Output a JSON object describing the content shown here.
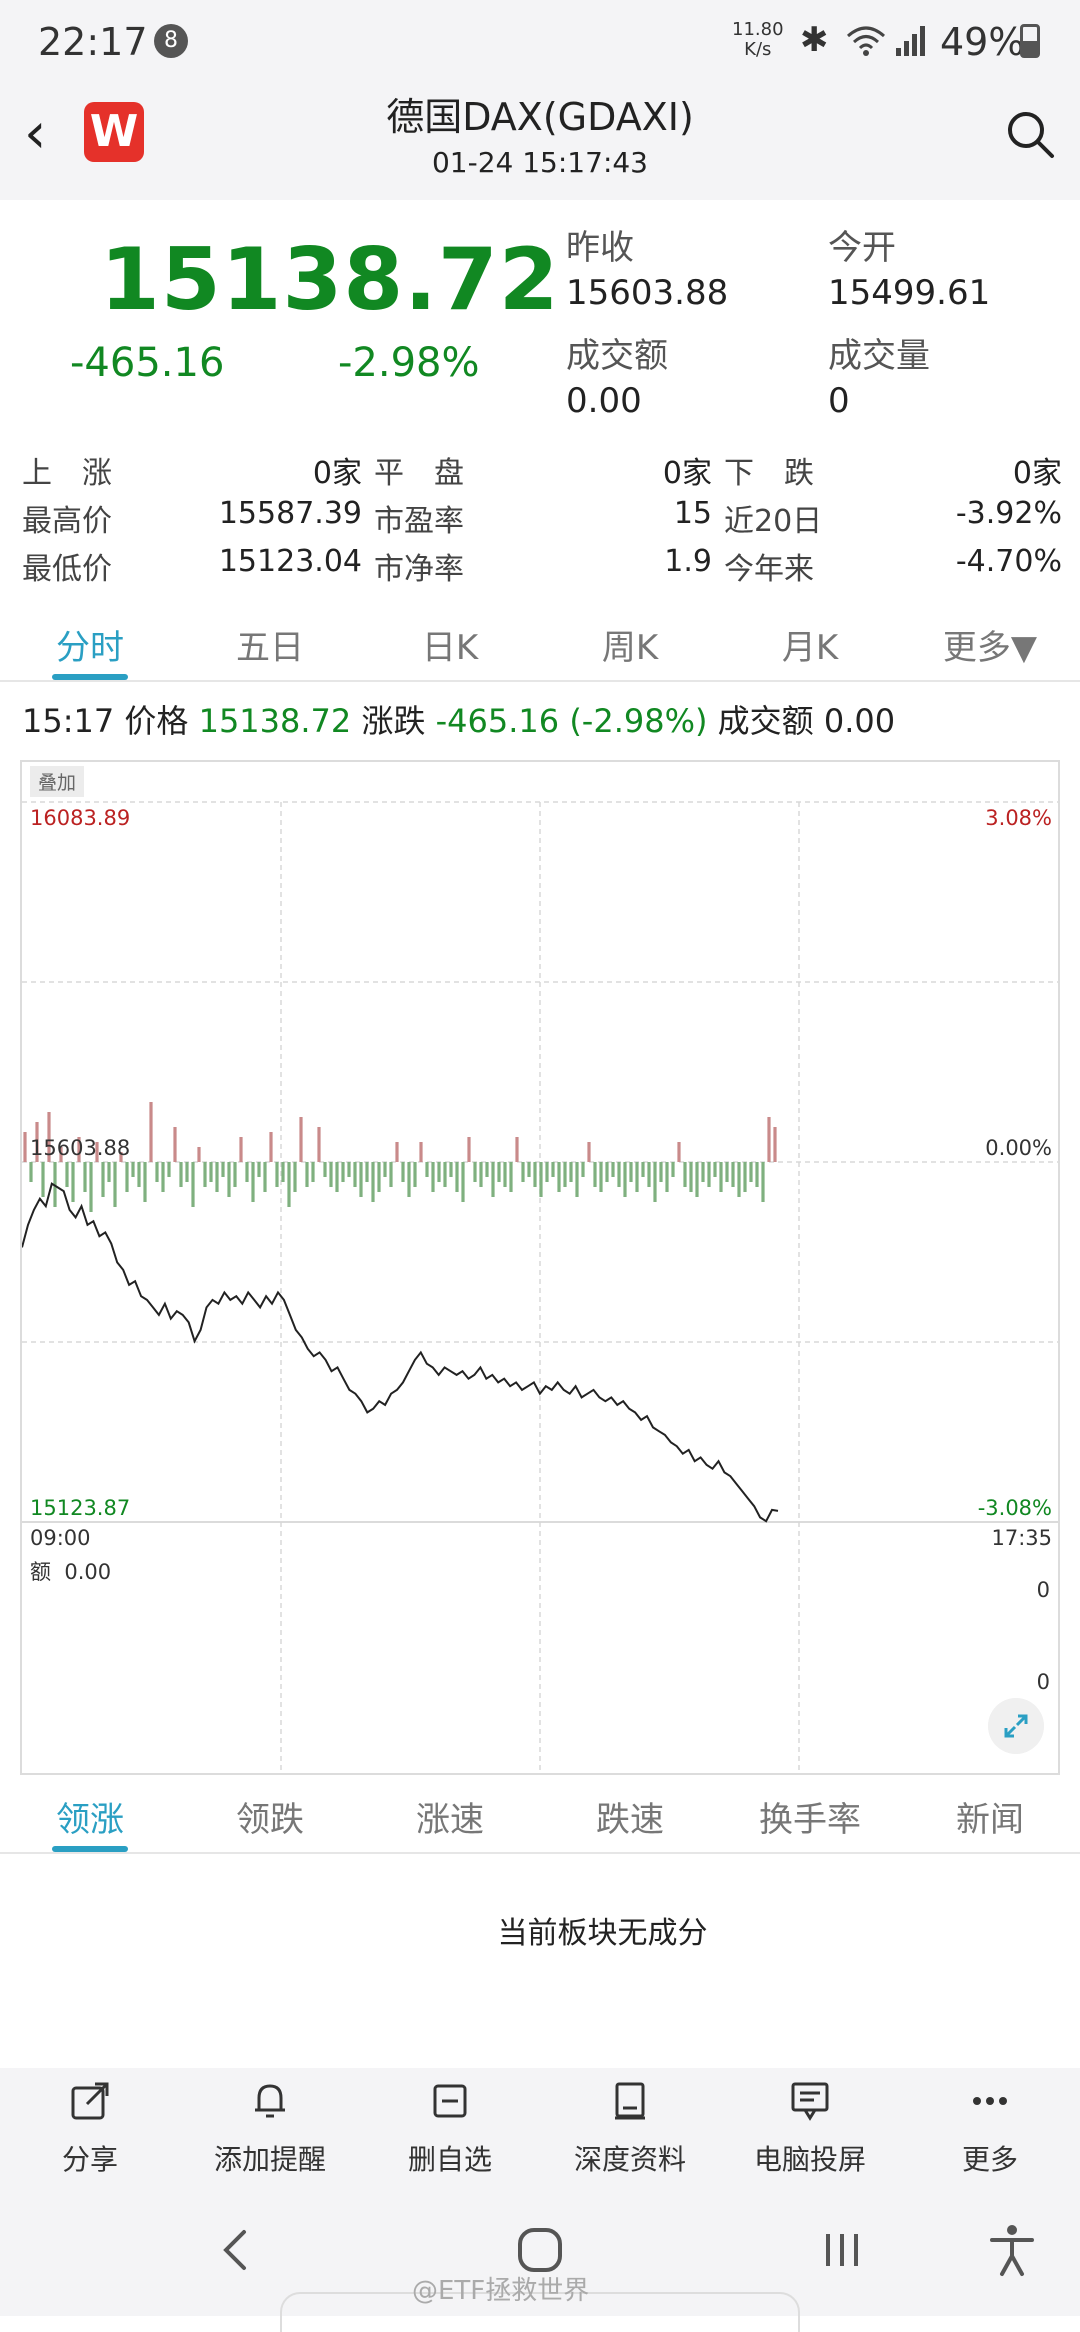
{
  "status_bar": {
    "time": "22:17",
    "notification_count": "8",
    "net_speed_value": "11.80",
    "net_speed_unit": "K/s",
    "battery": "49%"
  },
  "header": {
    "title": "德国DAX(GDAXI)",
    "datetime": "01-24 15:17:43",
    "logo_text": "W"
  },
  "quote": {
    "price": "15138.72",
    "change": "-465.16",
    "change_pct": "-2.98%",
    "prev_close_label": "昨收",
    "prev_close": "15603.88",
    "open_label": "今开",
    "open": "15499.61",
    "turnover_label": "成交额",
    "turnover": "0.00",
    "volume_label": "成交量",
    "volume": "0"
  },
  "stats": {
    "up_label": "上　涨",
    "up_value": "0家",
    "flat_label": "平　盘",
    "flat_value": "0家",
    "down_label": "下　跌",
    "down_value": "0家",
    "high_label": "最高价",
    "high_value": "15587.39",
    "pe_label": "市盈率",
    "pe_value": "15",
    "d20_label": "近20日",
    "d20_value": "-3.92%",
    "low_label": "最低价",
    "low_value": "15123.04",
    "pb_label": "市净率",
    "pb_value": "1.9",
    "ytd_label": "今年来",
    "ytd_value": "-4.70%"
  },
  "tabs": [
    "分时",
    "五日",
    "日K",
    "周K",
    "月K",
    "更多▼"
  ],
  "info_line": {
    "time": "15:17",
    "price_label": "价格",
    "price": "15138.72",
    "change_label": "涨跌",
    "change": "-465.16 (-2.98%)",
    "turnover_label": "成交额",
    "turnover": "0.00"
  },
  "chart_data": {
    "type": "line",
    "overlay_button": "叠加",
    "y_top_price": "16083.89",
    "y_top_pct": "3.08%",
    "y_mid_price": "15603.88",
    "y_mid_pct": "0.00%",
    "y_bottom_price": "15123.87",
    "y_bottom_pct": "-3.08%",
    "ylim": [
      15123.87,
      16083.89
    ],
    "ref_price": 15603.88,
    "x_start": "09:00",
    "x_end": "17:35",
    "volume_label": "额",
    "volume_value": "0.00",
    "volume_axis_top": "0",
    "volume_axis_bottom": "0",
    "price_series": [
      15490,
      15520,
      15540,
      15555,
      15545,
      15575,
      15570,
      15565,
      15540,
      15530,
      15545,
      15520,
      15525,
      15505,
      15510,
      15495,
      15470,
      15460,
      15440,
      15445,
      15425,
      15420,
      15410,
      15400,
      15415,
      15395,
      15405,
      15400,
      15390,
      15365,
      15380,
      15410,
      15420,
      15415,
      15430,
      15420,
      15425,
      15415,
      15430,
      15420,
      15410,
      15425,
      15415,
      15430,
      15420,
      15400,
      15380,
      15370,
      15355,
      15345,
      15350,
      15340,
      15325,
      15330,
      15315,
      15300,
      15295,
      15285,
      15270,
      15275,
      15285,
      15280,
      15295,
      15300,
      15310,
      15325,
      15340,
      15350,
      15335,
      15330,
      15320,
      15330,
      15325,
      15320,
      15325,
      15315,
      15320,
      15330,
      15315,
      15320,
      15310,
      15315,
      15305,
      15310,
      15300,
      15305,
      15310,
      15295,
      15305,
      15300,
      15310,
      15300,
      15295,
      15305,
      15290,
      15295,
      15300,
      15290,
      15285,
      15290,
      15280,
      15285,
      15275,
      15270,
      15260,
      15265,
      15250,
      15245,
      15240,
      15230,
      15225,
      15215,
      15220,
      15205,
      15210,
      15200,
      15195,
      15205,
      15190,
      15185,
      15175,
      15165,
      15155,
      15145,
      15130,
      15125,
      15140,
      15138.72
    ],
    "delta_series": [
      0.6,
      -0.4,
      0.8,
      -0.7,
      1.0,
      -0.9,
      0.3,
      -0.5,
      -0.8,
      0.5,
      -0.6,
      -1.0,
      0.4,
      -0.7,
      -0.4,
      -0.9,
      0.2,
      -0.6,
      -0.3,
      -0.5,
      -0.8,
      1.2,
      -0.4,
      -0.6,
      -0.3,
      0.7,
      -0.5,
      -0.4,
      -0.9,
      0.3,
      -0.5,
      -0.4,
      -0.6,
      -0.3,
      -0.7,
      -0.5,
      0.5,
      -0.4,
      -0.8,
      -0.3,
      -0.6,
      0.6,
      -0.5,
      -0.4,
      -0.9,
      -0.6,
      0.9,
      -0.5,
      -0.4,
      0.7,
      -0.3,
      -0.5,
      -0.6,
      -0.4,
      -0.3,
      -0.5,
      -0.7,
      -0.4,
      -0.8,
      -0.6,
      -0.3,
      -0.5,
      0.4,
      -0.4,
      -0.7,
      -0.5,
      0.4,
      -0.3,
      -0.6,
      -0.4,
      -0.5,
      -0.3,
      -0.6,
      -0.8,
      0.5,
      -0.4,
      -0.5,
      -0.3,
      -0.7,
      -0.4,
      -0.5,
      -0.6,
      0.5,
      -0.4,
      -0.3,
      -0.5,
      -0.7,
      -0.4,
      -0.3,
      -0.6,
      -0.5,
      -0.4,
      -0.7,
      -0.3,
      0.4,
      -0.5,
      -0.6,
      -0.4,
      -0.3,
      -0.5,
      -0.7,
      -0.4,
      -0.6,
      -0.3,
      -0.5,
      -0.8,
      -0.4,
      -0.6,
      -0.3,
      0.4,
      -0.5,
      -0.6,
      -0.7,
      -0.4,
      -0.5,
      -0.3,
      -0.6,
      -0.4,
      -0.5,
      -0.7,
      -0.6,
      -0.4,
      -0.5,
      -0.8,
      0.9,
      0.7
    ]
  },
  "tabs2": [
    "领涨",
    "领跌",
    "涨速",
    "跌速",
    "换手率",
    "新闻"
  ],
  "empty_message": "当前板块无成分",
  "toolbar": [
    "分享",
    "添加提醒",
    "删自选",
    "深度资料",
    "电脑投屏",
    "更多"
  ],
  "watermark": "@ETF拯救世界",
  "colors": {
    "up": "#b22222",
    "down": "#118822",
    "accent": "#2a9fc3"
  }
}
